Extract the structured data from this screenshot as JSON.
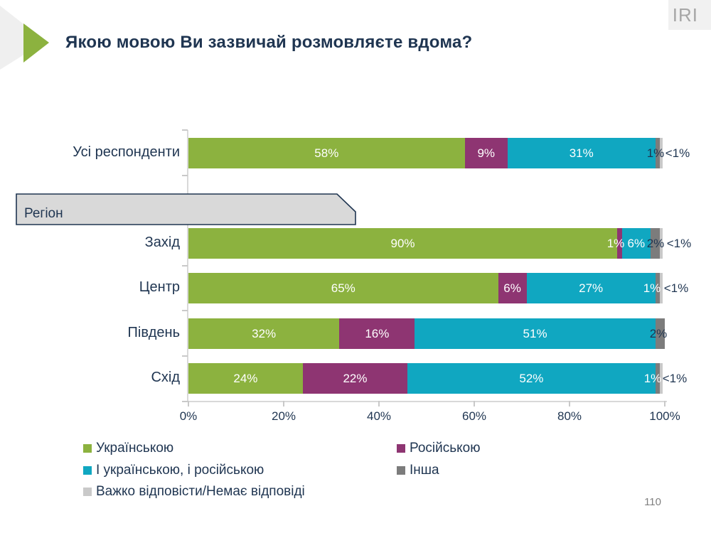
{
  "header": {
    "title": "Якою мовою Ви зазвичай розмовляєте вдома?",
    "logo": "IRI"
  },
  "region_tag": {
    "label": "Регіон"
  },
  "page_number": "110",
  "colors": {
    "navy_text": "#1F3551",
    "axis_gray": "#D9D9D9",
    "region_fill": "#D9D9D9"
  },
  "chart_data": {
    "type": "bar",
    "stacked": true,
    "orientation": "horizontal",
    "xlim": [
      0,
      100
    ],
    "x_ticks": [
      "0%",
      "20%",
      "40%",
      "60%",
      "80%",
      "100%"
    ],
    "grid": false,
    "legend_position": "bottom",
    "categories": [
      "Усі респонденти",
      "Захід",
      "Центр",
      "Південь",
      "Схід"
    ],
    "series": [
      {
        "key": "ukr",
        "name": "Українською",
        "color": "#8CB23F",
        "values": [
          58,
          90,
          65,
          32,
          24
        ]
      },
      {
        "key": "rus",
        "name": "Російською",
        "color": "#8E3572",
        "values": [
          9,
          1,
          6,
          16,
          22
        ]
      },
      {
        "key": "both",
        "name": "І українською, і російською",
        "color": "#10A7C1",
        "values": [
          31,
          6,
          27,
          51,
          52
        ]
      },
      {
        "key": "other",
        "name": "Інша",
        "color": "#7C7C7C",
        "values": [
          1,
          2,
          1,
          2,
          1
        ]
      },
      {
        "key": "dk",
        "name": "Важко відповісти/Немає відповіді",
        "color": "#C9C9C9",
        "values": [
          0.5,
          0.5,
          0.5,
          0,
          0.5
        ]
      }
    ],
    "in_bar_label_min_pct": 6,
    "end_labels": [
      [
        {
          "text": "1%",
          "x": 657,
          "navy": true
        },
        {
          "text": "<1%",
          "x": 688,
          "navy": true
        }
      ],
      [
        {
          "text": "1%",
          "x": 601,
          "navy": false
        },
        {
          "text": "2%",
          "x": 657,
          "navy": true
        },
        {
          "text": "<1%",
          "x": 690,
          "navy": true
        }
      ],
      [
        {
          "text": "1%",
          "x": 652,
          "navy": false
        },
        {
          "text": "<1%",
          "x": 686,
          "navy": true
        }
      ],
      [
        {
          "text": "2%",
          "x": 661,
          "navy": true
        }
      ],
      [
        {
          "text": "1%",
          "x": 653,
          "navy": false
        },
        {
          "text": "<1%",
          "x": 684,
          "navy": true
        }
      ]
    ]
  }
}
